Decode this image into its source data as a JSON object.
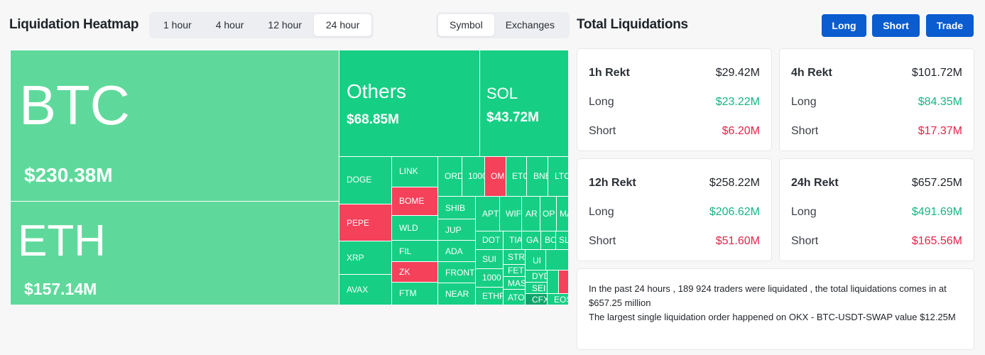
{
  "heatmap": {
    "title": "Liquidation Heatmap",
    "time_options": [
      "1 hour",
      "4 hour",
      "12 hour",
      "24 hour"
    ],
    "time_selected": "24 hour",
    "view_options": [
      "Symbol",
      "Exchanges"
    ],
    "view_selected": "Symbol",
    "colors": {
      "long_dominant": "#16cf84",
      "short_dominant": "#f5415a",
      "large": "#5fd99b"
    },
    "cells": {
      "btc": {
        "symbol": "BTC",
        "value": "$230.38M"
      },
      "eth": {
        "symbol": "ETH",
        "value": "$157.14M"
      },
      "others": {
        "symbol": "Others",
        "value": "$68.85M"
      },
      "sol": {
        "symbol": "SOL",
        "value": "$43.72M"
      },
      "doge": "DOGE",
      "pepe": "PEPE",
      "xrp": "XRP",
      "avax": "AVAX",
      "link": "LINK",
      "bome": "BOME",
      "wld": "WLD",
      "fil": "FIL",
      "zk": "ZK",
      "ftm": "FTM",
      "ord": "ORD",
      "k1000": "1000",
      "om": "OM",
      "etc": "ETC",
      "bnb": "BNB",
      "ltc": "LTC",
      "shib": "SHIB",
      "jup": "JUP",
      "ada": "ADA",
      "front": "FRONT",
      "near": "NEAR",
      "apt": "APT",
      "wif": "WIF",
      "ar": "AR",
      "op": "OP",
      "ma": "MA",
      "dot": "DOT",
      "tia": "TIA",
      "ga": "GA",
      "bo": "BO",
      "sl": "SL",
      "sui": "SUI",
      "str": "STR",
      "ui": "UI",
      "k1000b": "1000",
      "fet": "FET",
      "dyd": "DYD",
      "mas": "MAS",
      "sei": "SEI",
      "ethf": "ETHF",
      "ato": "ATO",
      "cfx": "CFX",
      "eos": "EOS"
    }
  },
  "totals": {
    "title": "Total Liquidations",
    "buttons": {
      "long": "Long",
      "short": "Short",
      "trade": "Trade"
    },
    "cards": [
      {
        "label": "1h Rekt",
        "total": "$29.42M",
        "long_label": "Long",
        "long": "$23.22M",
        "short_label": "Short",
        "short": "$6.20M"
      },
      {
        "label": "4h Rekt",
        "total": "$101.72M",
        "long_label": "Long",
        "long": "$84.35M",
        "short_label": "Short",
        "short": "$17.37M"
      },
      {
        "label": "12h Rekt",
        "total": "$258.22M",
        "long_label": "Long",
        "long": "$206.62M",
        "short_label": "Short",
        "short": "$51.60M"
      },
      {
        "label": "24h Rekt",
        "total": "$657.25M",
        "long_label": "Long",
        "long": "$491.69M",
        "short_label": "Short",
        "short": "$165.56M"
      }
    ],
    "summary_line1": "In the past 24 hours , 189 924 traders were liquidated , the total liquidations comes in at $657.25 million",
    "summary_line2": "The largest single liquidation order happened on OKX - BTC-USDT-SWAP value $12.25M"
  }
}
